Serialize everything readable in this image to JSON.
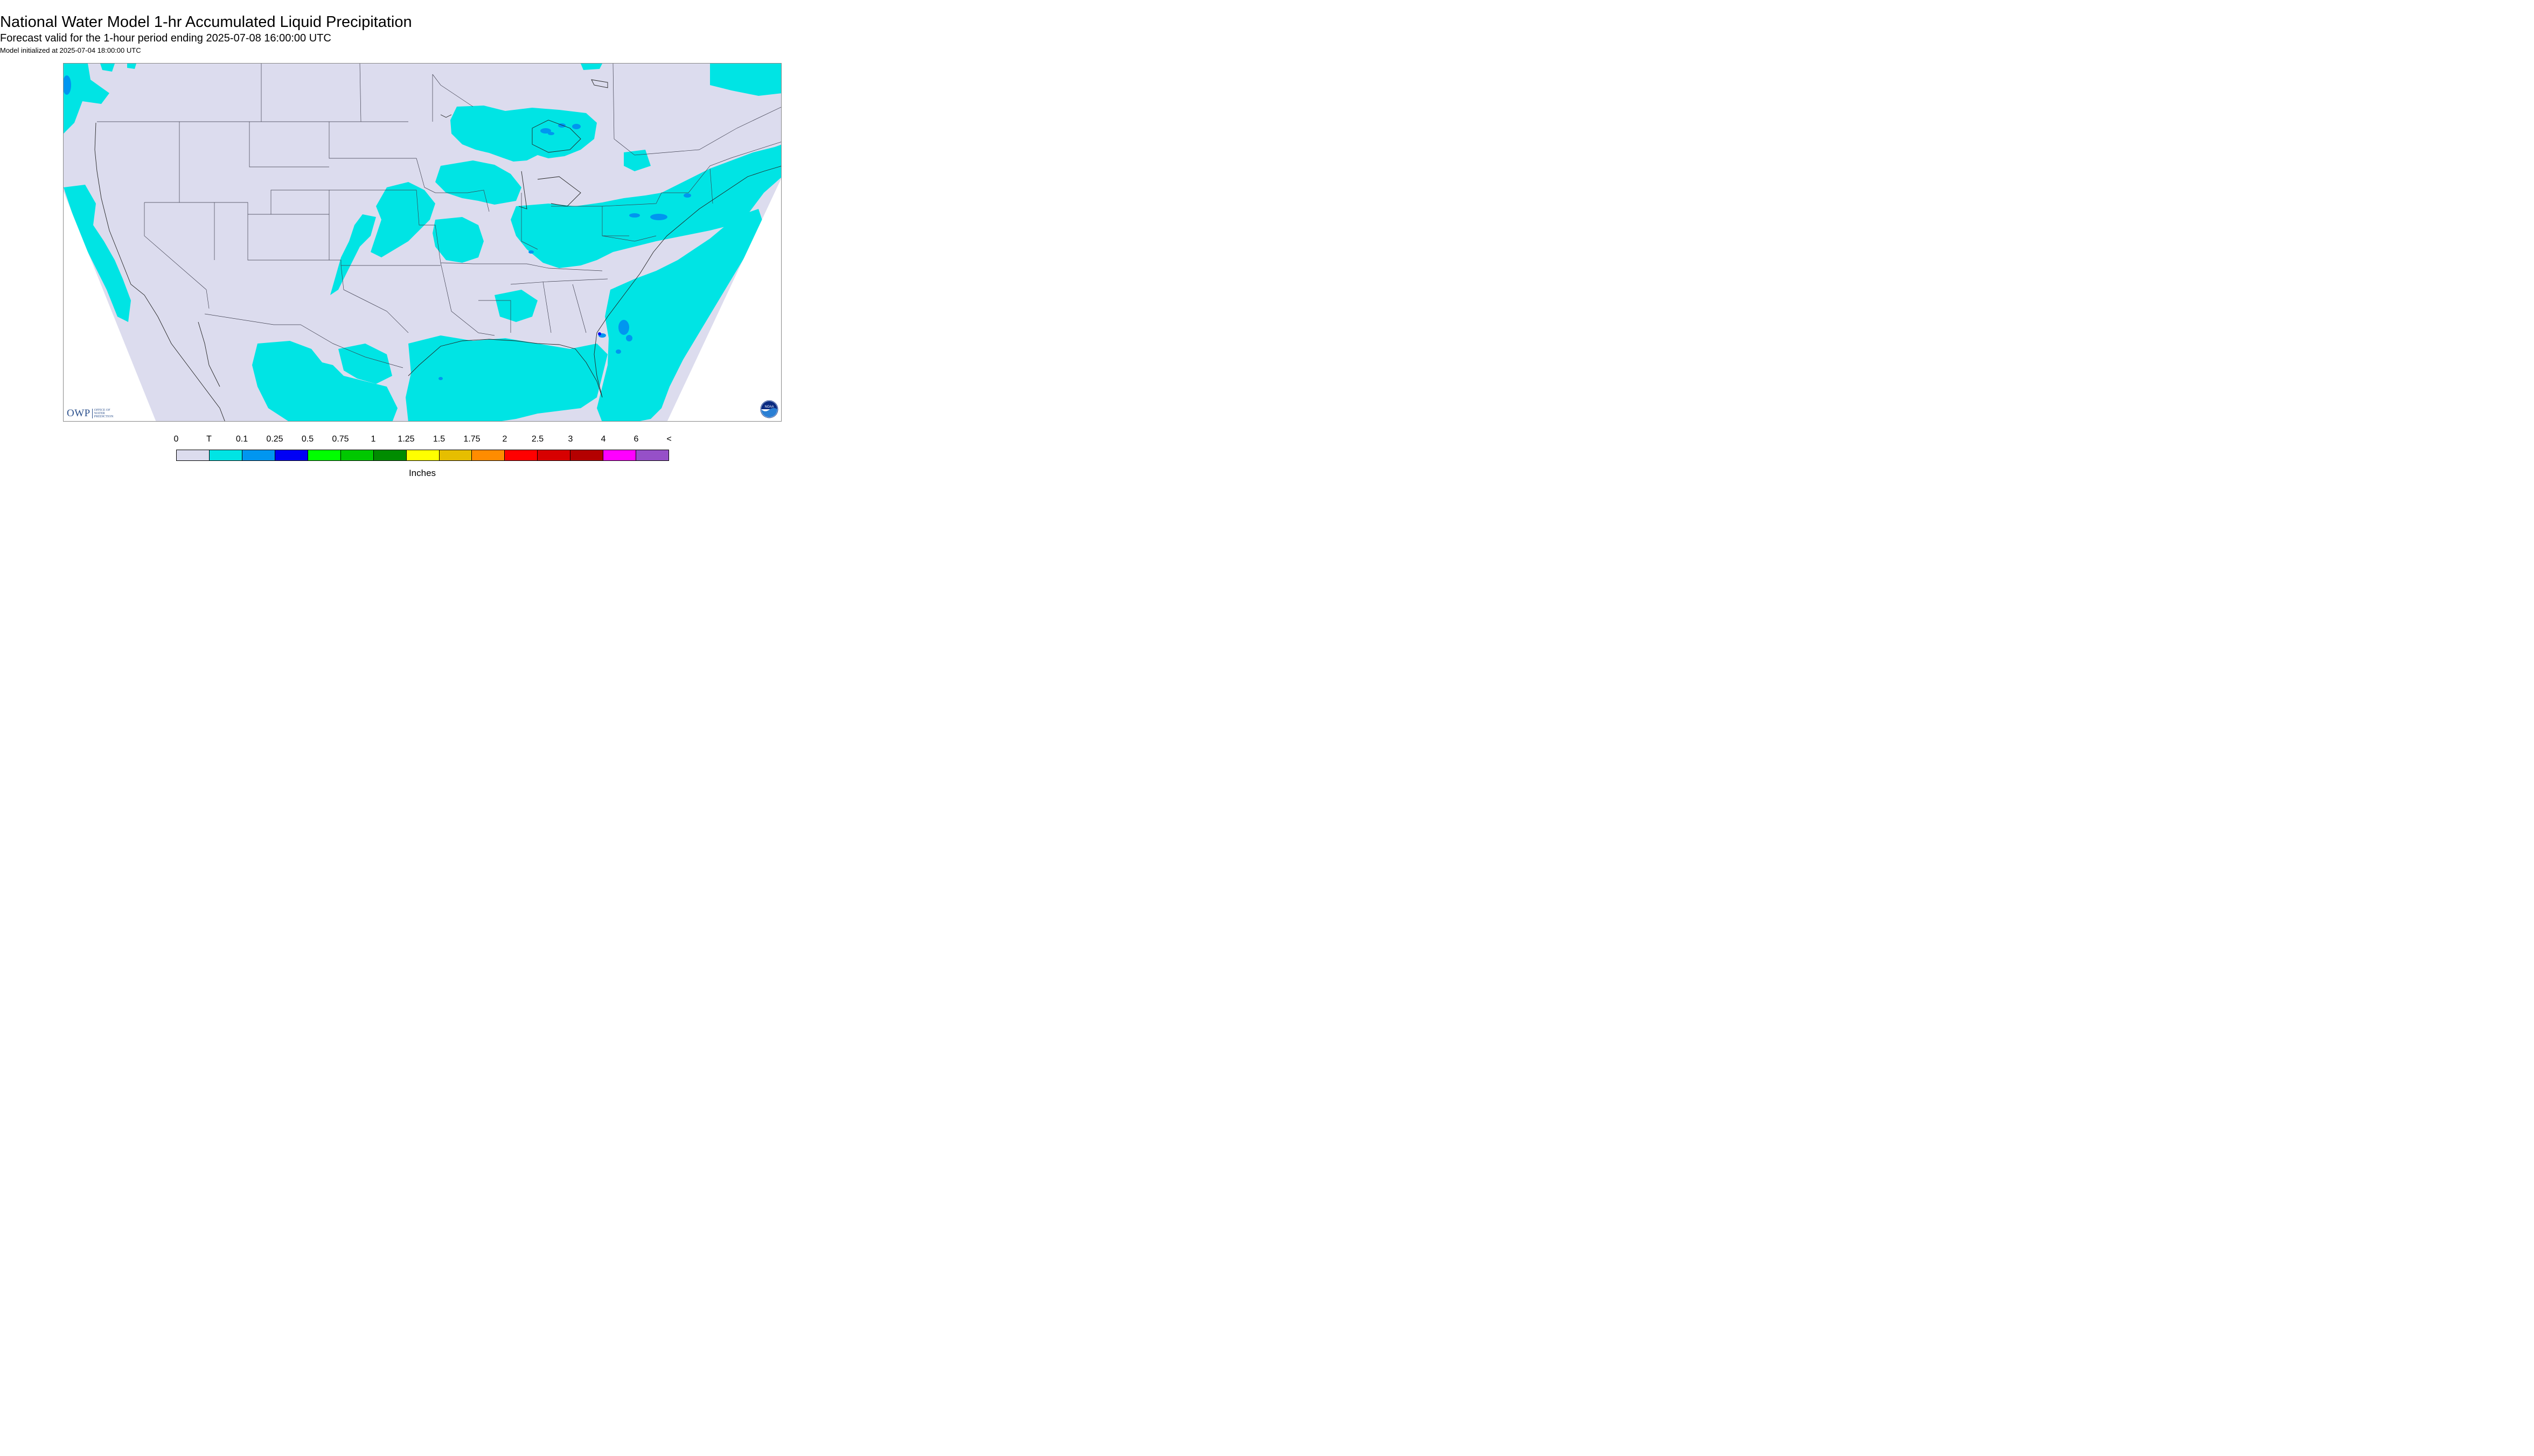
{
  "header": {
    "title": "National Water Model 1-hr Accumulated Liquid Precipitation",
    "subtitle": "Forecast valid for the 1-hour period ending 2025-07-08 16:00:00 UTC",
    "init_line": "Model initialized at 2025-07-04 18:00:00 UTC"
  },
  "logos": {
    "owp_mark": "OWP",
    "owp_text_line1": "OFFICE OF",
    "owp_text_line2": "WATER",
    "owp_text_line3": "PREDICTION",
    "noaa_text": "NOAA"
  },
  "legend": {
    "units": "Inches",
    "tick_labels": [
      "0",
      "T",
      "0.1",
      "0.25",
      "0.5",
      "0.75",
      "1",
      "1.25",
      "1.5",
      "1.75",
      "2",
      "2.5",
      "3",
      "4",
      "6",
      "<"
    ],
    "colors": [
      "#dcdcee",
      "#00e4e4",
      "#0096f0",
      "#0000f5",
      "#00ff00",
      "#00c800",
      "#008c00",
      "#ffff00",
      "#e6be00",
      "#ff8c00",
      "#ff0000",
      "#d70000",
      "#b40000",
      "#ff00ff",
      "#9650c8"
    ]
  },
  "colors": {
    "background_no_precip": "#dcdcee",
    "precip_trace": "#00e4e4",
    "precip_light": "#0096f0",
    "precip_medium": "#0000f5",
    "outside_domain": "#ffffff",
    "boundaries": "#3a3a4a"
  }
}
